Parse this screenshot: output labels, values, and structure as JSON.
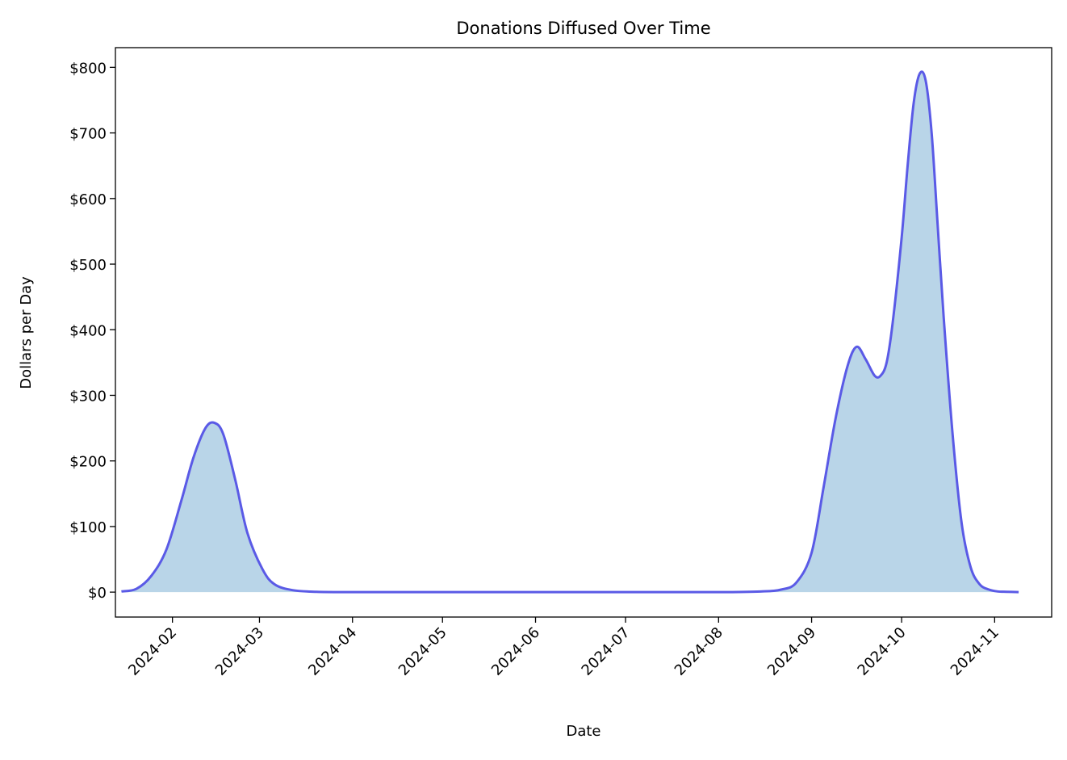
{
  "chart_data": {
    "type": "area",
    "title": "Donations Diffused Over Time",
    "xlabel": "Date",
    "ylabel": "Dollars per Day",
    "x_ticks": [
      "2024-02-01",
      "2024-03-01",
      "2024-04-01",
      "2024-05-01",
      "2024-06-01",
      "2024-07-01",
      "2024-08-01",
      "2024-09-01",
      "2024-10-01",
      "2024-11-01"
    ],
    "x_tick_labels": [
      "2024-02",
      "2024-03",
      "2024-04",
      "2024-05",
      "2024-06",
      "2024-07",
      "2024-08",
      "2024-09",
      "2024-10",
      "2024-11"
    ],
    "y_ticks": [
      0,
      100,
      200,
      300,
      400,
      500,
      600,
      700,
      800
    ],
    "y_tick_labels": [
      "$0",
      "$100",
      "$200",
      "$300",
      "$400",
      "$500",
      "$600",
      "$700",
      "$800"
    ],
    "xlim": [
      "2024-01-13",
      "2024-11-20"
    ],
    "ylim": [
      -38,
      830
    ],
    "grid": false,
    "colors": {
      "line": "#5a5ae6",
      "fill": "#b9d5e8"
    },
    "series": [
      {
        "x": [
          "2024-01-15",
          "2024-01-20",
          "2024-01-25",
          "2024-01-30",
          "2024-02-04",
          "2024-02-08",
          "2024-02-12",
          "2024-02-15",
          "2024-02-18",
          "2024-02-22",
          "2024-02-26",
          "2024-03-02",
          "2024-03-06",
          "2024-03-12",
          "2024-03-20",
          "2024-04-01",
          "2024-05-01",
          "2024-06-01",
          "2024-07-01",
          "2024-08-01",
          "2024-08-15",
          "2024-08-22",
          "2024-08-27",
          "2024-09-01",
          "2024-09-05",
          "2024-09-09",
          "2024-09-13",
          "2024-09-16",
          "2024-09-19",
          "2024-09-22",
          "2024-09-24",
          "2024-09-26",
          "2024-09-28",
          "2024-10-01",
          "2024-10-03",
          "2024-10-05",
          "2024-10-07",
          "2024-10-09",
          "2024-10-11",
          "2024-10-13",
          "2024-10-15",
          "2024-10-18",
          "2024-10-21",
          "2024-10-24",
          "2024-10-27",
          "2024-10-30",
          "2024-11-02",
          "2024-11-05",
          "2024-11-09"
        ],
        "values": [
          1,
          5,
          25,
          65,
          140,
          205,
          250,
          258,
          240,
          170,
          90,
          35,
          12,
          3,
          0.5,
          0,
          0,
          0,
          0,
          0,
          1,
          4,
          15,
          60,
          160,
          265,
          345,
          374,
          355,
          330,
          330,
          350,
          410,
          540,
          650,
          745,
          790,
          780,
          700,
          560,
          420,
          240,
          105,
          38,
          12,
          4,
          1,
          0.5,
          0
        ]
      }
    ]
  }
}
